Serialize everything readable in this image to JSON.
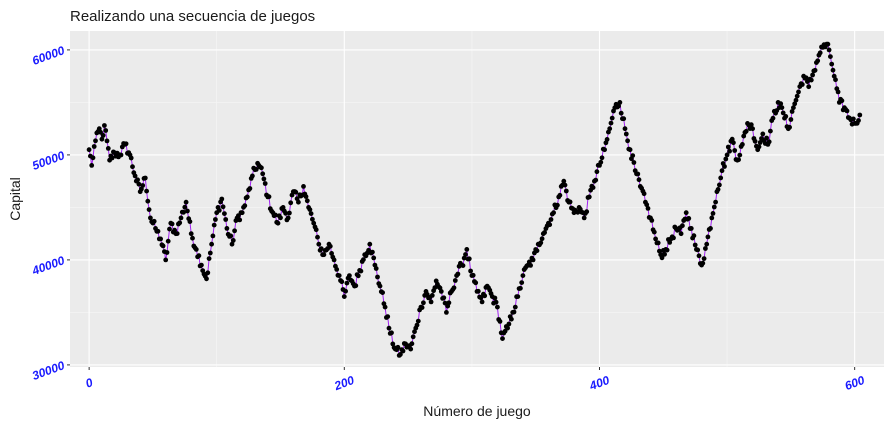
{
  "chart_data": {
    "type": "line",
    "title": "Realizando una secuencia de juegos",
    "xlabel": "Número de juego",
    "ylabel": "Capital",
    "xlim": [
      -15,
      623
    ],
    "ylim": [
      29800,
      61800
    ],
    "x_ticks": [
      0,
      200,
      400,
      600
    ],
    "x_tick_labels": [
      "0",
      "200",
      "400",
      "600"
    ],
    "y_ticks": [
      30000,
      40000,
      50000,
      60000
    ],
    "y_tick_labels": [
      "30000",
      "40000",
      "50000",
      "60000"
    ],
    "grid": true,
    "legend": "none",
    "colors": {
      "line": "#a020f0",
      "points": "#000000",
      "panel": "#ebebeb",
      "grid": "#ffffff",
      "tick_labels": "#1a1aff"
    },
    "anchors": [
      [
        0,
        50500
      ],
      [
        2,
        49000
      ],
      [
        4,
        50800
      ],
      [
        8,
        52500
      ],
      [
        10,
        51500
      ],
      [
        12,
        52800
      ],
      [
        16,
        49500
      ],
      [
        20,
        50200
      ],
      [
        24,
        50000
      ],
      [
        28,
        51000
      ],
      [
        32,
        50000
      ],
      [
        36,
        48000
      ],
      [
        40,
        46500
      ],
      [
        44,
        47800
      ],
      [
        48,
        44000
      ],
      [
        52,
        43000
      ],
      [
        56,
        42000
      ],
      [
        60,
        40000
      ],
      [
        64,
        43500
      ],
      [
        68,
        42500
      ],
      [
        72,
        44000
      ],
      [
        76,
        45500
      ],
      [
        80,
        42500
      ],
      [
        84,
        41000
      ],
      [
        88,
        39500
      ],
      [
        92,
        38200
      ],
      [
        96,
        41500
      ],
      [
        100,
        44500
      ],
      [
        104,
        45800
      ],
      [
        108,
        43000
      ],
      [
        112,
        41500
      ],
      [
        116,
        44000
      ],
      [
        120,
        44500
      ],
      [
        124,
        46000
      ],
      [
        128,
        48000
      ],
      [
        132,
        49200
      ],
      [
        136,
        48200
      ],
      [
        140,
        46000
      ],
      [
        144,
        44500
      ],
      [
        148,
        43500
      ],
      [
        152,
        45000
      ],
      [
        156,
        44000
      ],
      [
        160,
        46500
      ],
      [
        164,
        45500
      ],
      [
        168,
        47000
      ],
      [
        172,
        45000
      ],
      [
        176,
        43500
      ],
      [
        180,
        41500
      ],
      [
        184,
        40500
      ],
      [
        188,
        41500
      ],
      [
        192,
        40000
      ],
      [
        196,
        38500
      ],
      [
        200,
        36500
      ],
      [
        204,
        38500
      ],
      [
        208,
        37500
      ],
      [
        212,
        39000
      ],
      [
        216,
        40500
      ],
      [
        220,
        41500
      ],
      [
        224,
        39500
      ],
      [
        228,
        37500
      ],
      [
        232,
        35500
      ],
      [
        236,
        33000
      ],
      [
        240,
        31500
      ],
      [
        244,
        31000
      ],
      [
        248,
        32000
      ],
      [
        252,
        31500
      ],
      [
        256,
        33500
      ],
      [
        260,
        35500
      ],
      [
        264,
        37000
      ],
      [
        268,
        36000
      ],
      [
        272,
        38000
      ],
      [
        276,
        37000
      ],
      [
        280,
        35000
      ],
      [
        284,
        37000
      ],
      [
        288,
        38500
      ],
      [
        292,
        39500
      ],
      [
        296,
        41000
      ],
      [
        300,
        38500
      ],
      [
        304,
        37000
      ],
      [
        308,
        36000
      ],
      [
        312,
        37500
      ],
      [
        316,
        36500
      ],
      [
        320,
        35500
      ],
      [
        324,
        32500
      ],
      [
        328,
        33500
      ],
      [
        332,
        35000
      ],
      [
        336,
        36500
      ],
      [
        340,
        38500
      ],
      [
        344,
        39500
      ],
      [
        348,
        40000
      ],
      [
        352,
        41500
      ],
      [
        356,
        42500
      ],
      [
        360,
        43500
      ],
      [
        364,
        44500
      ],
      [
        368,
        46000
      ],
      [
        372,
        47500
      ],
      [
        376,
        45500
      ],
      [
        380,
        44500
      ],
      [
        384,
        45000
      ],
      [
        388,
        44000
      ],
      [
        392,
        46000
      ],
      [
        396,
        47500
      ],
      [
        400,
        49000
      ],
      [
        404,
        50500
      ],
      [
        408,
        52500
      ],
      [
        412,
        54500
      ],
      [
        416,
        55000
      ],
      [
        420,
        52500
      ],
      [
        424,
        50500
      ],
      [
        428,
        48500
      ],
      [
        432,
        47000
      ],
      [
        436,
        45500
      ],
      [
        440,
        44000
      ],
      [
        444,
        42000
      ],
      [
        448,
        40500
      ],
      [
        452,
        41000
      ],
      [
        456,
        42000
      ],
      [
        460,
        43000
      ],
      [
        464,
        42500
      ],
      [
        468,
        44500
      ],
      [
        472,
        43000
      ],
      [
        476,
        41000
      ],
      [
        480,
        39500
      ],
      [
        484,
        41500
      ],
      [
        488,
        44000
      ],
      [
        492,
        46500
      ],
      [
        496,
        48500
      ],
      [
        500,
        50000
      ],
      [
        504,
        51500
      ],
      [
        508,
        49500
      ],
      [
        512,
        51000
      ],
      [
        516,
        53000
      ],
      [
        520,
        52500
      ],
      [
        524,
        50500
      ],
      [
        528,
        52000
      ],
      [
        532,
        51000
      ],
      [
        536,
        53500
      ],
      [
        540,
        55000
      ],
      [
        544,
        54000
      ],
      [
        548,
        52500
      ],
      [
        552,
        54500
      ],
      [
        556,
        56000
      ],
      [
        560,
        57500
      ],
      [
        564,
        56500
      ],
      [
        568,
        58000
      ],
      [
        572,
        59500
      ],
      [
        576,
        60500
      ],
      [
        580,
        60000
      ],
      [
        584,
        57500
      ],
      [
        588,
        55000
      ],
      [
        592,
        54500
      ],
      [
        596,
        53500
      ],
      [
        600,
        53000
      ],
      [
        604,
        53800
      ]
    ]
  }
}
